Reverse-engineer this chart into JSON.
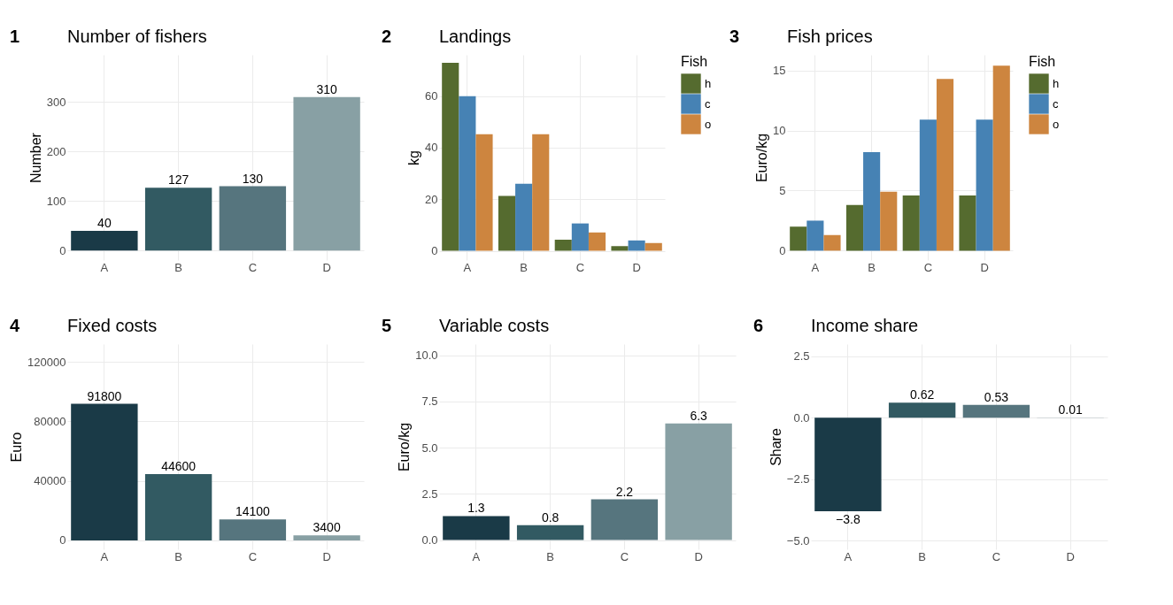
{
  "chart_data": [
    {
      "type": "bar",
      "title": "Number of fishers",
      "annotations": [
        "1"
      ],
      "ylabel": "Number",
      "categories": [
        "A",
        "B",
        "C",
        "D"
      ],
      "values": [
        40,
        127,
        130,
        310
      ],
      "colors": [
        "#1a3a47",
        "#325a62",
        "#56757e",
        "#88a0a4"
      ],
      "data_labels": true,
      "ylim": [
        -19,
        395
      ],
      "yticks": [
        0,
        100,
        200,
        300
      ],
      "grid": true,
      "legend": false
    },
    {
      "type": "bar",
      "title": "Landings",
      "annotations": [
        "2"
      ],
      "ylabel": "kg",
      "legend_title": "Fish",
      "categories": [
        "A",
        "B",
        "C",
        "D"
      ],
      "series": [
        {
          "name": "h",
          "color": "#556b2f",
          "values": [
            72.9,
            21.3,
            4.3,
            1.8
          ]
        },
        {
          "name": "c",
          "color": "#4682b4",
          "values": [
            60,
            26,
            10.6,
            4
          ]
        },
        {
          "name": "o",
          "color": "#cd853f",
          "values": [
            45.2,
            45.2,
            7.1,
            3
          ]
        }
      ],
      "ylim": [
        -3.6,
        76
      ],
      "yticks": [
        0,
        20,
        40,
        60
      ],
      "grid": true,
      "legend": "right"
    },
    {
      "type": "bar",
      "title": "Fish prices",
      "annotations": [
        "3"
      ],
      "ylabel": "Euro/kg",
      "legend_title": "Fish",
      "categories": [
        "A",
        "B",
        "C",
        "D"
      ],
      "series": [
        {
          "name": "h",
          "color": "#556b2f",
          "values": [
            2.0,
            3.8,
            4.6,
            4.6
          ]
        },
        {
          "name": "c",
          "color": "#4682b4",
          "values": [
            2.5,
            8.2,
            10.9,
            10.9
          ]
        },
        {
          "name": "o",
          "color": "#cd853f",
          "values": [
            1.3,
            4.9,
            14.3,
            15.4
          ]
        }
      ],
      "ylim": [
        -0.78,
        16.3
      ],
      "yticks": [
        0,
        5,
        10,
        15
      ],
      "grid": true,
      "legend": "right"
    },
    {
      "type": "bar",
      "title": "Fixed costs",
      "annotations": [
        "4"
      ],
      "ylabel": "Euro",
      "categories": [
        "A",
        "B",
        "C",
        "D"
      ],
      "values": [
        91800,
        44600,
        14100,
        3400
      ],
      "colors": [
        "#1a3a47",
        "#325a62",
        "#56757e",
        "#88a0a4"
      ],
      "data_labels": true,
      "ylim": [
        -6000,
        132000
      ],
      "yticks": [
        0,
        40000,
        80000,
        120000
      ],
      "grid": true,
      "legend": false
    },
    {
      "type": "bar",
      "title": "Variable costs",
      "annotations": [
        "5"
      ],
      "ylabel": "Euro/kg",
      "categories": [
        "A",
        "B",
        "C",
        "D"
      ],
      "values": [
        1.3,
        0.8,
        2.2,
        6.3
      ],
      "colors": [
        "#1a3a47",
        "#325a62",
        "#56757e",
        "#88a0a4"
      ],
      "data_labels": true,
      "ylim": [
        -0.5,
        10.6
      ],
      "yticks": [
        {
          "value": 0,
          "label": "0.0"
        },
        {
          "value": 2.5,
          "label": "2.5"
        },
        {
          "value": 5,
          "label": "5.0"
        },
        {
          "value": 7.5,
          "label": "7.5"
        },
        {
          "value": 10,
          "label": "10.0"
        }
      ],
      "grid": true,
      "legend": false
    },
    {
      "type": "bar",
      "title": "Income share",
      "annotations": [
        "6"
      ],
      "ylabel": "Share",
      "categories": [
        "A",
        "B",
        "C",
        "D"
      ],
      "values": [
        -3.8,
        0.62,
        0.53,
        0.01
      ],
      "colors": [
        "#1a3a47",
        "#325a62",
        "#56757e",
        "#88a0a4"
      ],
      "data_labels": true,
      "ylim": [
        -5.35,
        3.0
      ],
      "yticks": [
        {
          "value": -5,
          "label": "−5.0"
        },
        {
          "value": -2.5,
          "label": "−2.5"
        },
        {
          "value": 0,
          "label": "0.0"
        },
        {
          "value": 2.5,
          "label": "2.5"
        }
      ],
      "grid": true,
      "legend": false
    }
  ]
}
